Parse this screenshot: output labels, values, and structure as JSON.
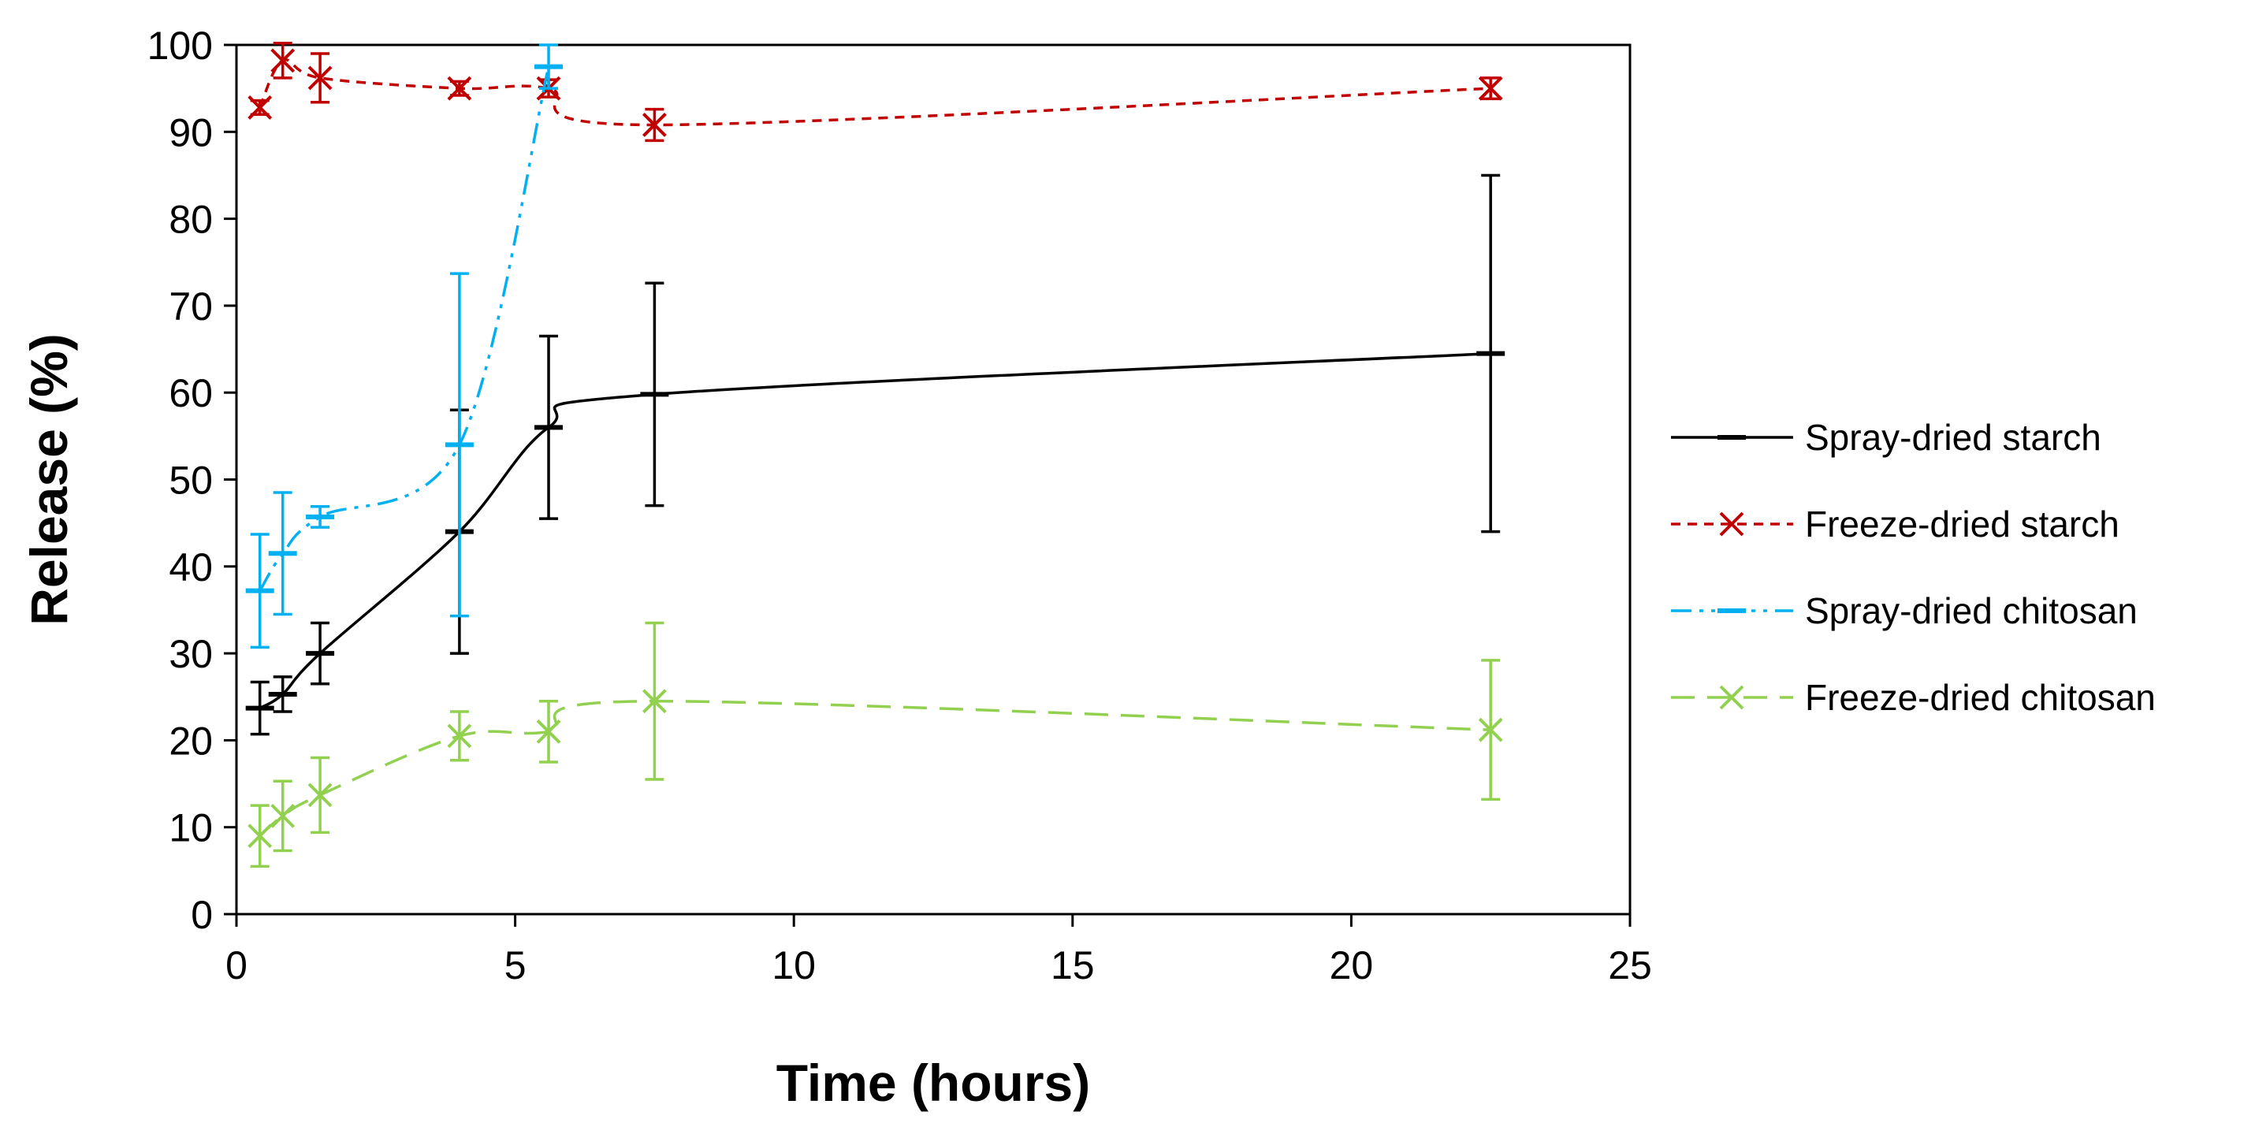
{
  "chart_data": {
    "type": "line",
    "title": "",
    "xlabel": "Time (hours)",
    "ylabel": "Release (%)",
    "xlim": [
      0,
      25
    ],
    "ylim": [
      0,
      100
    ],
    "xticks": [
      0,
      5,
      10,
      15,
      20,
      25
    ],
    "yticks": [
      0,
      10,
      20,
      30,
      40,
      50,
      60,
      70,
      80,
      90,
      100
    ],
    "grid": false,
    "legend_position": "right",
    "series": [
      {
        "name": "Spray-dried starch",
        "color": "#000000",
        "dash": "solid",
        "marker": "dash",
        "x": [
          0.42,
          0.83,
          1.5,
          4.0,
          5.6,
          7.5,
          22.5
        ],
        "y": [
          23.7,
          25.3,
          30.0,
          44.0,
          56.0,
          59.8,
          64.5
        ],
        "err": [
          3.0,
          2.0,
          3.5,
          14.0,
          10.5,
          12.8,
          20.5
        ]
      },
      {
        "name": "Freeze-dried starch",
        "color": "#C00000",
        "dash": "short",
        "marker": "x",
        "x": [
          0.42,
          0.83,
          1.5,
          4.0,
          5.6,
          7.5,
          22.5
        ],
        "y": [
          92.8,
          98.2,
          96.2,
          95.0,
          95.0,
          90.8,
          95.0
        ],
        "err": [
          0.8,
          2.0,
          2.8,
          0.8,
          1.0,
          1.8,
          1.2
        ]
      },
      {
        "name": "Spray-dried chitosan",
        "color": "#00B0F0",
        "dash": "dashdotdot",
        "marker": "dash",
        "x": [
          0.42,
          0.83,
          1.5,
          4.0,
          5.6
        ],
        "y": [
          37.2,
          41.5,
          45.7,
          54.0,
          97.5
        ],
        "err": [
          6.5,
          7.0,
          1.2,
          19.7,
          2.5
        ]
      },
      {
        "name": "Freeze-dried chitosan",
        "color": "#92D050",
        "dash": "long",
        "marker": "x",
        "x": [
          0.42,
          0.83,
          1.5,
          4.0,
          5.6,
          7.5,
          22.5
        ],
        "y": [
          9.0,
          11.3,
          13.7,
          20.5,
          21.0,
          24.5,
          21.2
        ],
        "err": [
          3.5,
          4.0,
          4.3,
          2.8,
          3.5,
          9.0,
          8.0
        ]
      }
    ]
  }
}
